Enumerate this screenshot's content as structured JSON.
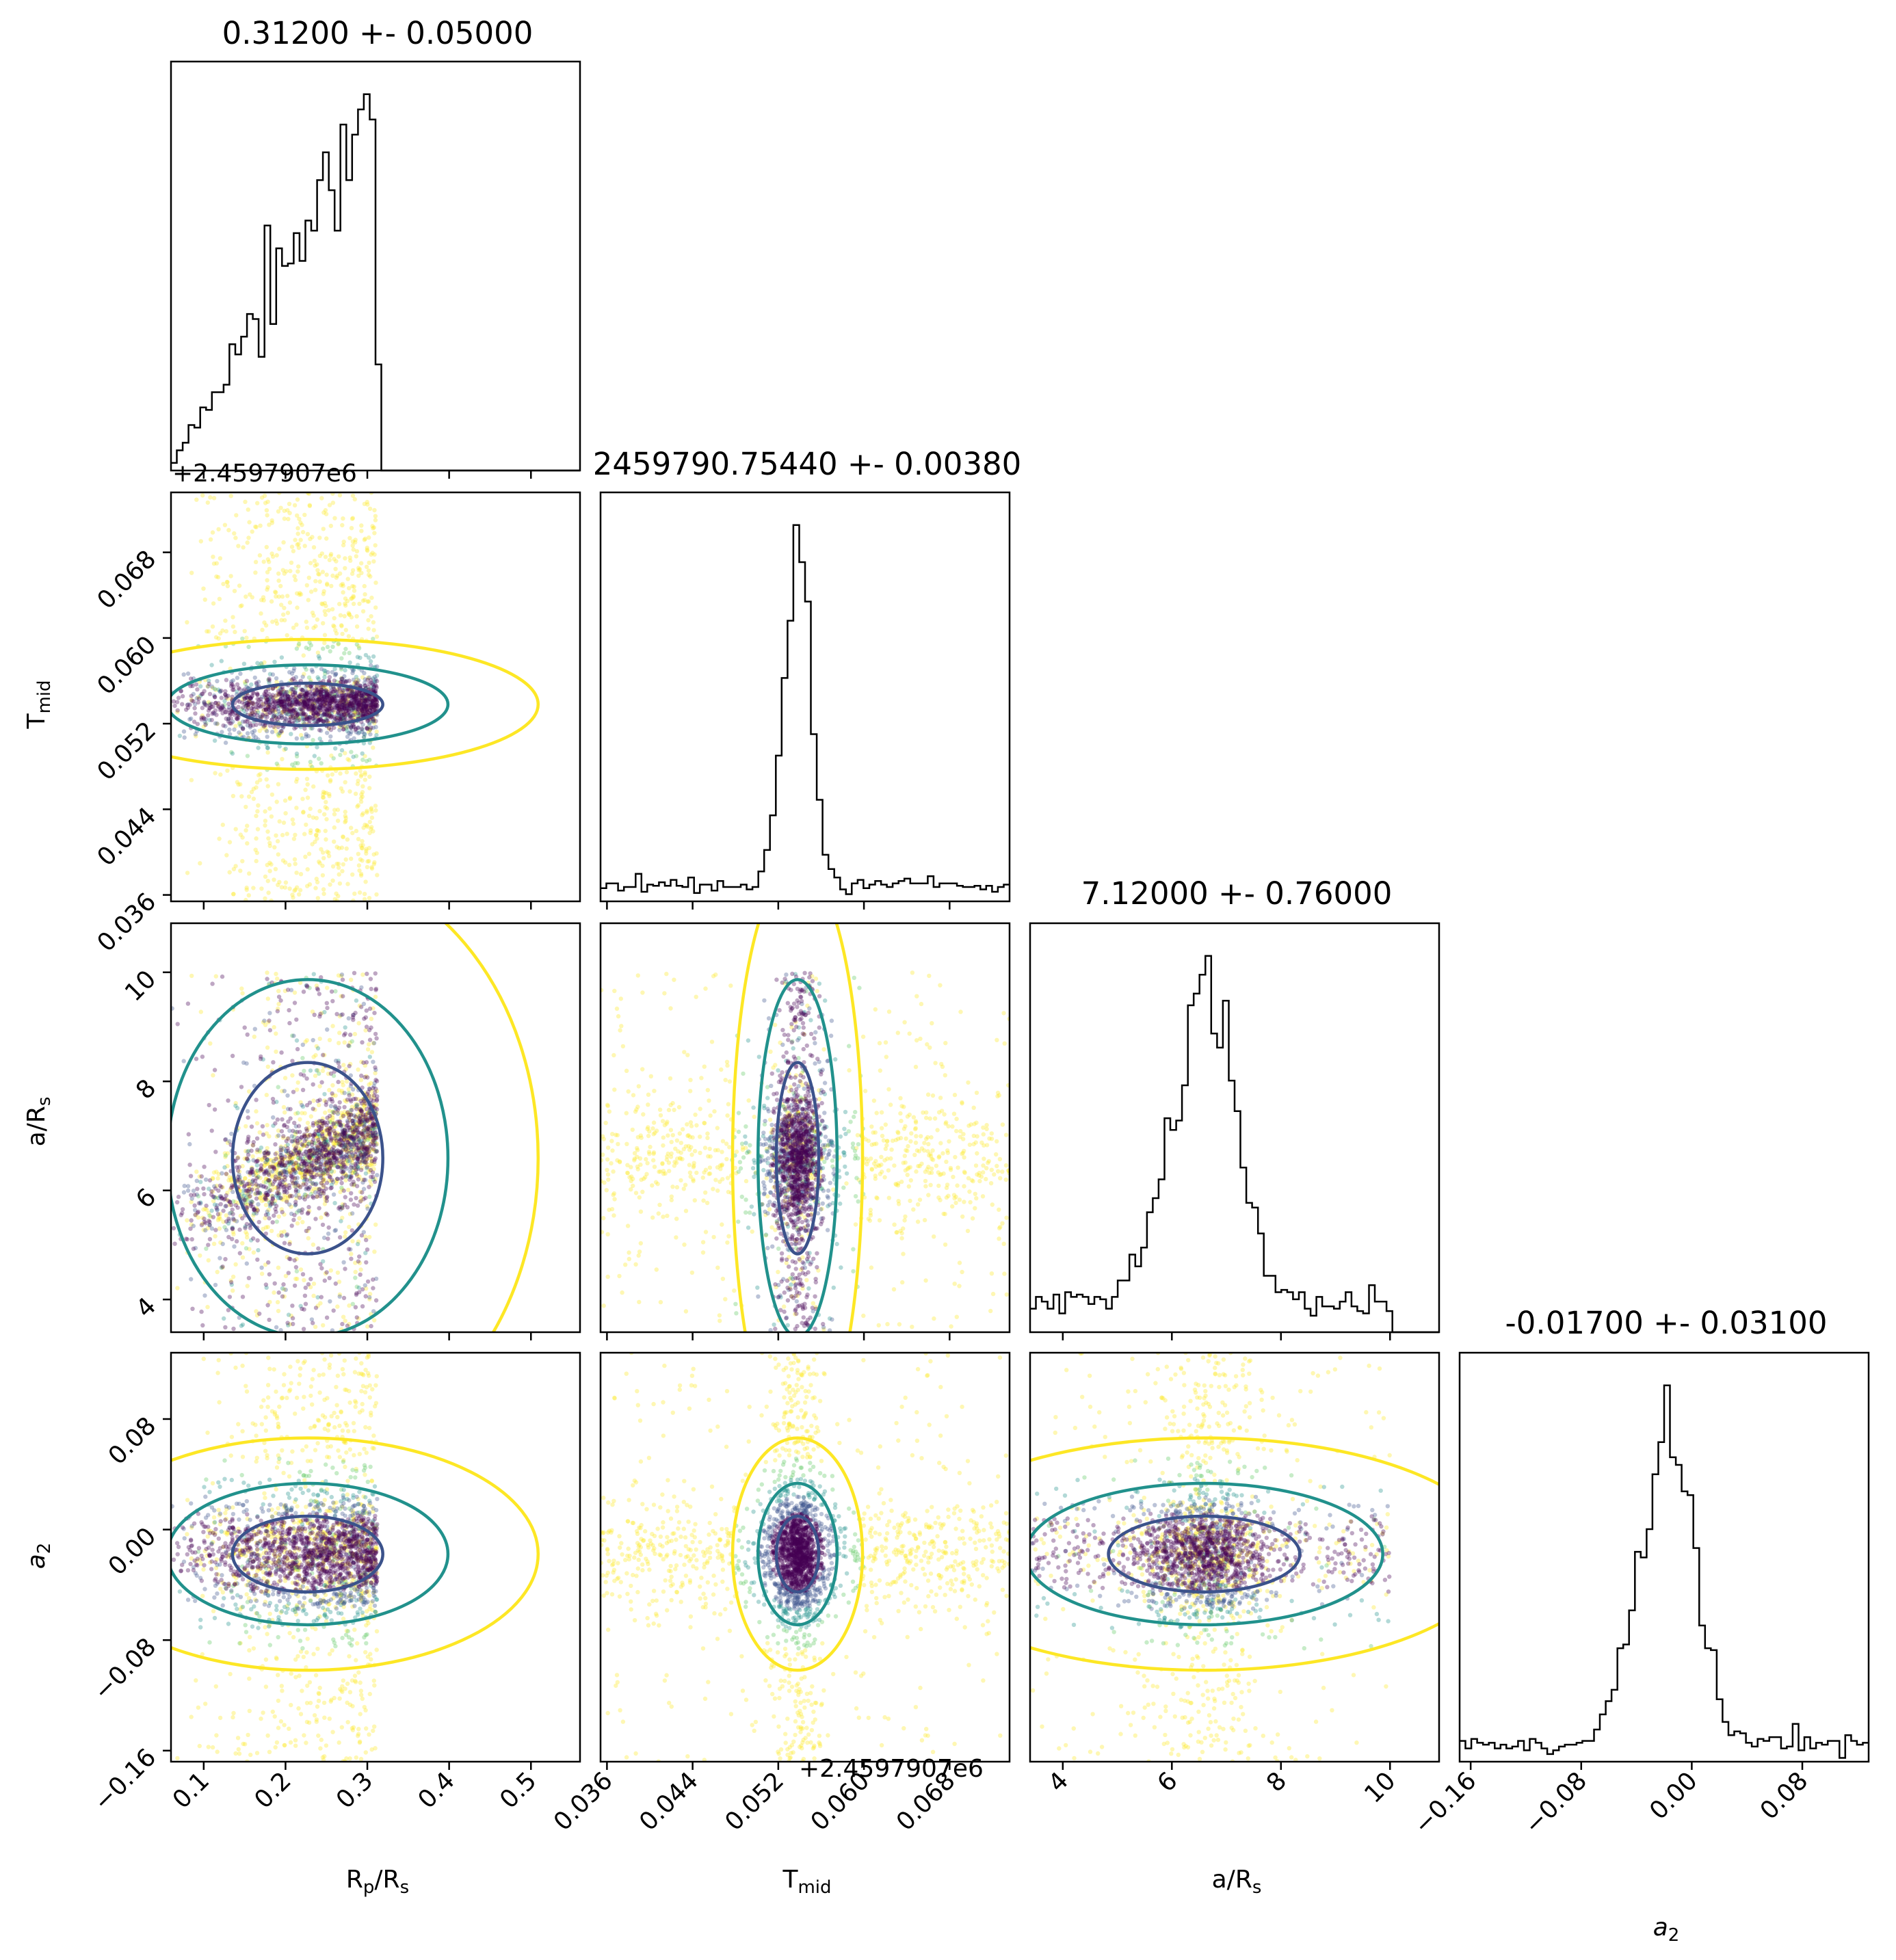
{
  "chart_data": {
    "type": "scatter",
    "parameters": [
      {
        "key": "rp",
        "label_main": "R",
        "label_sub": "p",
        "label_rest": "/R",
        "label_sub2": "s",
        "range": [
          0.06,
          0.56
        ]
      },
      {
        "key": "tmid",
        "label_main": "T",
        "label_sub": "mid",
        "label_rest": "",
        "label_sub2": "",
        "range": [
          0.0354,
          0.0736
        ],
        "offset": "+2.4597907e6"
      },
      {
        "key": "ars",
        "label_main": "a/R",
        "label_sub": "s",
        "label_rest": "",
        "label_sub2": "",
        "range": [
          3.4,
          10.9
        ]
      },
      {
        "key": "a2",
        "label_main": "a",
        "label_sub": "2",
        "label_rest": "",
        "label_sub2": "",
        "range": [
          -0.168,
          0.128
        ]
      }
    ],
    "titles": [
      "0.31200 +- 0.05000",
      "2459790.75440 +- 0.00380",
      "7.12000 +- 0.76000",
      "-0.01700 +- 0.03100"
    ],
    "ticks": {
      "rp": {
        "values": [
          0.1,
          0.2,
          0.3,
          0.4,
          0.5
        ],
        "labels": [
          "0.1",
          "0.2",
          "0.3",
          "0.4",
          "0.5"
        ]
      },
      "tmid": {
        "values": [
          0.036,
          0.044,
          0.052,
          0.06,
          0.068
        ],
        "labels": [
          "0.036",
          "0.044",
          "0.052",
          "0.060",
          "0.068"
        ]
      },
      "ars": {
        "values": [
          4,
          6,
          8,
          10
        ],
        "labels": [
          "4",
          "6",
          "8",
          "10"
        ]
      },
      "a2": {
        "values": [
          -0.16,
          -0.08,
          0.0,
          0.08
        ],
        "labels": [
          "−0.16",
          "−0.08",
          "0.00",
          "0.08"
        ]
      }
    },
    "posterior": {
      "rp": {
        "dist": "ramp",
        "min": 0.06,
        "max": 0.312
      },
      "tmid": {
        "center": 0.0538,
        "sigma": 0.0012,
        "bg_frac": 0.35
      },
      "ars": {
        "center": 6.7,
        "sigma": 0.42,
        "bg_frac": 0.3,
        "bg_max": 10.0
      },
      "a2": {
        "center": -0.017,
        "sigma": 0.01,
        "bg_frac": 0.25
      }
    },
    "colors": {
      "dense": "#440154",
      "mid": "#3b528b",
      "teal": "#21918c",
      "light": "#5ec962",
      "yellow": "#fde725"
    },
    "grid": false,
    "legend": "none"
  }
}
